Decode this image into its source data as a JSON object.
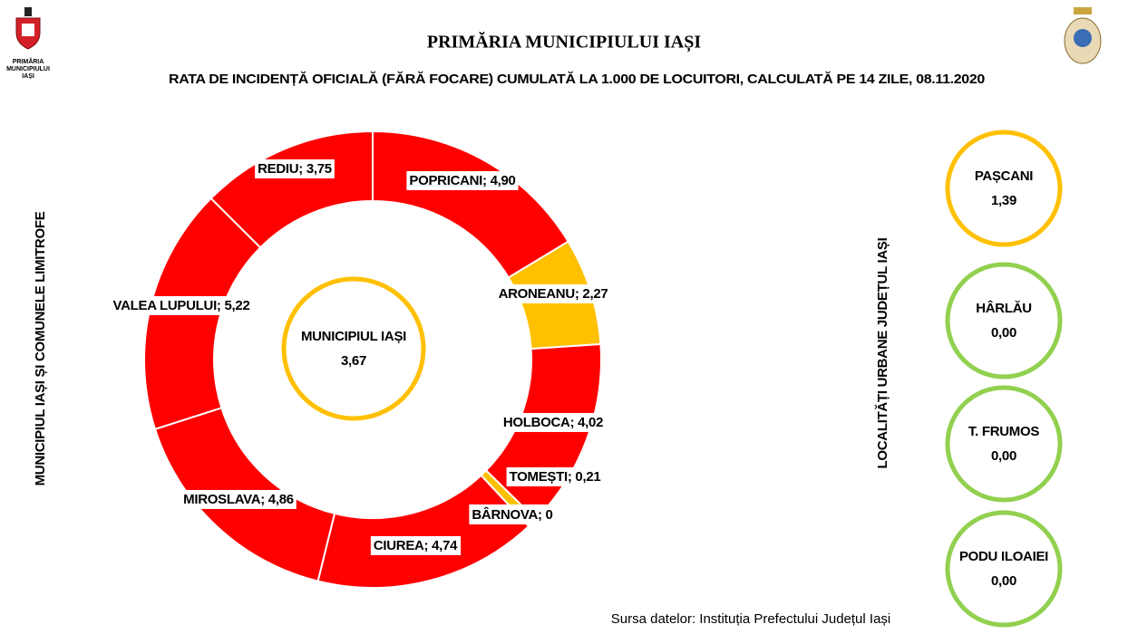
{
  "header": {
    "logo_lines": [
      "PRIMĂRIA",
      "MUNICIPIULUI",
      "IAȘI"
    ],
    "title": "PRIMĂRIA MUNICIPIULUI IAȘI"
  },
  "chart_data": {
    "type": "donut",
    "subtitle": "RATA DE INCIDENȚĂ OFICIALĂ (FĂRĂ FOCARE) CUMULATĂ LA 1.000 DE LOCUITORI, CALCULATĂ PE 14 ZILE, 08.11.2020",
    "left_label": "MUNICIPIUL IAȘI ȘI COMUNELE LIMITROFE",
    "values": [
      4.9,
      2.27,
      4.02,
      0.21,
      0,
      4.74,
      4.86,
      5.22,
      3.75
    ],
    "value_labels": [
      "POPRICANI; 4,90",
      "ARONEANU; 2,27",
      "HOLBOCA; 4,02",
      "TOMEȘTI; 0,21",
      "BÂRNOVA; 0",
      "CIUREA; 4,74",
      "MIROSLAVA; 4,86",
      "VALEA LUPULUI; 5,22",
      "REDIU; 3,75"
    ],
    "colors": [
      "#ff0000",
      "#ffc000",
      "#ff0000",
      "#ffc000",
      "#ffc000",
      "#ff0000",
      "#ff0000",
      "#ff0000",
      "#ff0000"
    ],
    "center": {
      "name": "MUNICIPIUL IAȘI",
      "value": 3.67,
      "value_label": "3,67",
      "color": "#ffc000"
    },
    "right_label": "LOCALITĂȚI URBANE JUDEȚUL IAȘI",
    "urban": [
      {
        "name": "PAȘCANI",
        "value": 1.39,
        "value_label": "1,39",
        "color": "#ffc000"
      },
      {
        "name": "HÂRLĂU",
        "value": 0,
        "value_label": "0,00",
        "color": "#92d050"
      },
      {
        "name": "T. FRUMOS",
        "value": 0,
        "value_label": "0,00",
        "color": "#92d050"
      },
      {
        "name": "PODU ILOAIEI",
        "value": 0,
        "value_label": "0,00",
        "color": "#92d050"
      }
    ],
    "source": "Sursa datelor: Instituția Prefectului Județul Iași"
  }
}
